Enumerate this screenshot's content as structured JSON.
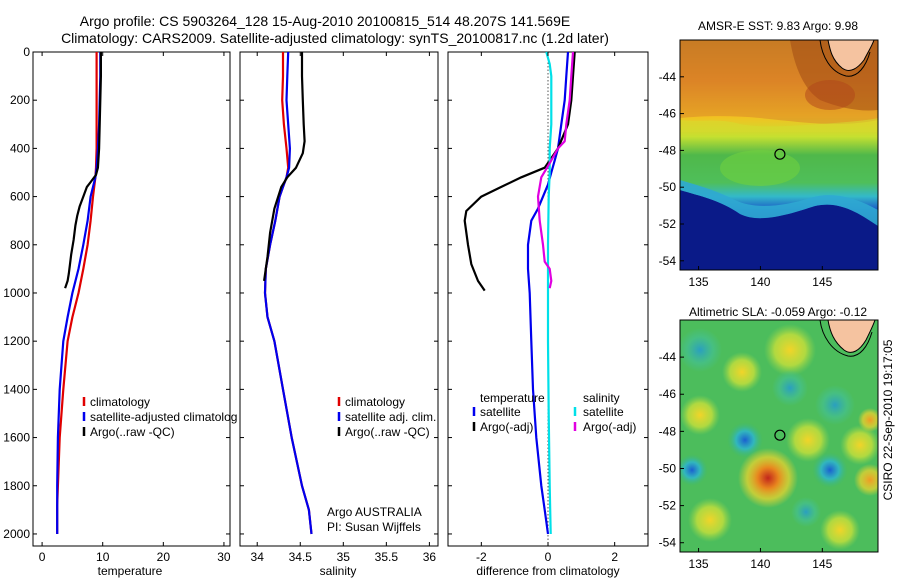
{
  "header": {
    "line1": "Argo profile: CS 5903264_128 15-Aug-2010 20100815_514 48.207S 141.569E",
    "line2": "Climatology: CARS2009. Satellite-adjusted climatology: synTS_20100817.nc (1.2d later)"
  },
  "footer": {
    "agency": "Argo AUSTRALIA",
    "pi": "PI: Susan Wijffels",
    "stamp": "CSIRO 22-Sep-2010 19:17:05"
  },
  "colors": {
    "climatology": "#e00000",
    "satellite": "#0000ee",
    "argo": "#000000",
    "salinity_satellite": "#00e0e8",
    "salinity_argo": "#e000e0"
  },
  "chart_data": [
    {
      "id": "temperature",
      "type": "line",
      "xlabel": "temperature",
      "ylabel": "",
      "xlim": [
        -1.5,
        31
      ],
      "ylim": [
        2050,
        0
      ],
      "xticks": [
        0,
        10,
        20,
        30
      ],
      "yticks": [
        0,
        200,
        400,
        600,
        800,
        1000,
        1200,
        1400,
        1600,
        1800,
        2000
      ],
      "legend": [
        "climatology",
        "satellite-adjusted climatolog",
        "Argo(..raw -QC)"
      ],
      "legend_position": "lower-right",
      "series": [
        {
          "name": "climatology",
          "color": "#e00000",
          "x": [
            9.0,
            9.0,
            9.0,
            9.0,
            9.0,
            8.9,
            8.8,
            8.6,
            8.4,
            8.0,
            7.5,
            6.8,
            6.0,
            5.0,
            4.2,
            3.5,
            2.9,
            2.6,
            2.5,
            2.5
          ],
          "y": [
            0,
            100,
            200,
            300,
            400,
            480,
            520,
            560,
            600,
            700,
            800,
            900,
            1000,
            1100,
            1200,
            1400,
            1600,
            1800,
            1880,
            2000
          ]
        },
        {
          "name": "satellite-adjusted climatolog",
          "color": "#0000ee",
          "x": [
            9.6,
            9.6,
            9.5,
            9.4,
            9.2,
            9.0,
            8.8,
            8.4,
            8.0,
            7.5,
            6.8,
            6.0,
            5.0,
            4.2,
            3.5,
            2.9,
            2.6,
            2.5,
            2.5
          ],
          "y": [
            0,
            100,
            200,
            300,
            400,
            480,
            520,
            560,
            600,
            700,
            800,
            900,
            1000,
            1100,
            1200,
            1400,
            1600,
            1800,
            2000
          ]
        },
        {
          "name": "Argo(..raw -QC)",
          "color": "#000000",
          "x": [
            9.7,
            9.7,
            9.6,
            9.5,
            9.4,
            9.2,
            8.9,
            8.0,
            7.4,
            6.8,
            6.2,
            5.8,
            5.5,
            5.2,
            4.8,
            4.6,
            4.4,
            4.2,
            3.8
          ],
          "y": [
            0,
            100,
            200,
            300,
            400,
            480,
            510,
            540,
            560,
            600,
            640,
            680,
            720,
            780,
            840,
            880,
            920,
            950,
            980
          ]
        }
      ]
    },
    {
      "id": "salinity",
      "type": "line",
      "xlabel": "salinity",
      "ylabel": "",
      "xlim": [
        33.8,
        36.1
      ],
      "ylim": [
        2050,
        0
      ],
      "xticks": [
        34,
        34.5,
        35,
        35.5,
        36
      ],
      "legend": [
        "climatology",
        "satellite adj. clim.",
        "Argo(..raw -QC)"
      ],
      "legend_position": "lower-right",
      "series": [
        {
          "name": "climatology",
          "color": "#e00000",
          "x": [
            34.3,
            34.3,
            34.29,
            34.31,
            34.34,
            34.36,
            34.34,
            34.3,
            34.26,
            34.21,
            34.15,
            34.1,
            34.09,
            34.12,
            34.2,
            34.3,
            34.4,
            34.52,
            34.6,
            34.63
          ],
          "y": [
            0,
            100,
            200,
            300,
            400,
            480,
            520,
            560,
            600,
            700,
            800,
            900,
            1000,
            1100,
            1200,
            1400,
            1600,
            1800,
            1900,
            2000
          ]
        },
        {
          "name": "satellite adj. clim.",
          "color": "#0000ee",
          "x": [
            34.36,
            34.35,
            34.34,
            34.36,
            34.38,
            34.37,
            34.34,
            34.3,
            34.26,
            34.21,
            34.15,
            34.1,
            34.09,
            34.12,
            34.2,
            34.3,
            34.4,
            34.52,
            34.6,
            34.63
          ],
          "y": [
            0,
            100,
            200,
            300,
            400,
            480,
            520,
            560,
            600,
            700,
            800,
            900,
            1000,
            1100,
            1200,
            1400,
            1600,
            1800,
            1900,
            2000
          ]
        },
        {
          "name": "Argo(..raw -QC)",
          "color": "#000000",
          "x": [
            34.52,
            34.52,
            34.53,
            34.54,
            34.55,
            34.53,
            34.45,
            34.35,
            34.28,
            34.2,
            34.15,
            34.12,
            34.08
          ],
          "y": [
            0,
            100,
            200,
            300,
            370,
            420,
            480,
            520,
            560,
            650,
            750,
            850,
            950
          ]
        }
      ]
    },
    {
      "id": "difference",
      "type": "line",
      "xlabel": "difference from climatology",
      "ylabel": "",
      "xlim": [
        -3,
        3
      ],
      "ylim": [
        2050,
        0
      ],
      "xticks": [
        -2,
        0,
        2
      ],
      "legend": [
        "temperature",
        "satellite",
        "Argo(-adj)",
        "salinity",
        "satellite",
        "Argo(-adj)"
      ],
      "legend_position": "lower-center",
      "series": [
        {
          "name": "temperature satellite",
          "color": "#0000ee",
          "x": [
            0.6,
            0.55,
            0.5,
            0.4,
            0.3,
            0.2,
            0.1,
            0.0,
            -0.15,
            -0.3,
            -0.5,
            -0.6,
            -0.6,
            -0.55,
            -0.5,
            -0.45,
            -0.35,
            -0.2,
            -0.1,
            0.0
          ],
          "y": [
            0,
            100,
            200,
            300,
            400,
            450,
            500,
            550,
            600,
            650,
            700,
            800,
            900,
            1000,
            1200,
            1400,
            1600,
            1800,
            1900,
            2000
          ]
        },
        {
          "name": "temperature Argo(-adj)",
          "color": "#000000",
          "x": [
            0.8,
            0.75,
            0.7,
            0.6,
            0.3,
            -0.1,
            -0.8,
            -1.4,
            -2.0,
            -2.45,
            -2.5,
            -2.4,
            -2.3,
            -2.1,
            -1.9
          ],
          "y": [
            0,
            100,
            200,
            300,
            400,
            480,
            520,
            560,
            600,
            660,
            700,
            800,
            880,
            950,
            990
          ]
        },
        {
          "name": "salinity satellite",
          "color": "#00e0e8",
          "x": [
            -0.05,
            0.05,
            0.1,
            0.1,
            0.1,
            0.05,
            0.05,
            0.02,
            0.0,
            0.0,
            0.0,
            0.02,
            0.05,
            0.08
          ],
          "y": [
            0,
            50,
            100,
            200,
            300,
            400,
            500,
            600,
            800,
            1000,
            1200,
            1500,
            1800,
            2000
          ]
        },
        {
          "name": "salinity Argo(-adj)",
          "color": "#e000e0",
          "x": [
            0.75,
            0.7,
            0.65,
            0.55,
            0.5,
            0.3,
            0.1,
            -0.2,
            -0.3,
            -0.25,
            -0.15,
            -0.1,
            0.05,
            0.1,
            0.05
          ],
          "y": [
            0,
            100,
            200,
            300,
            370,
            400,
            450,
            520,
            600,
            700,
            800,
            870,
            900,
            950,
            980
          ]
        }
      ]
    },
    {
      "id": "sst-map",
      "type": "heatmap",
      "title": "AMSR-E SST: 9.83 Argo: 9.98",
      "xlim": [
        133.5,
        149.5
      ],
      "ylim": [
        -54.5,
        -42
      ],
      "xticks": [
        135,
        140,
        145
      ],
      "yticks": [
        -44,
        -46,
        -48,
        -50,
        -52,
        -54
      ],
      "marker": {
        "lon": 141.569,
        "lat": -48.207
      },
      "colormap": "jet"
    },
    {
      "id": "sla-map",
      "type": "heatmap",
      "title": "Altimetric SLA: -0.059 Argo: -0.12",
      "xlim": [
        133.5,
        149.5
      ],
      "ylim": [
        -54.5,
        -42
      ],
      "xticks": [
        135,
        140,
        145
      ],
      "yticks": [
        -44,
        -46,
        -48,
        -50,
        -52,
        -54
      ],
      "marker": {
        "lon": 141.569,
        "lat": -48.207
      },
      "colormap": "jet"
    }
  ]
}
